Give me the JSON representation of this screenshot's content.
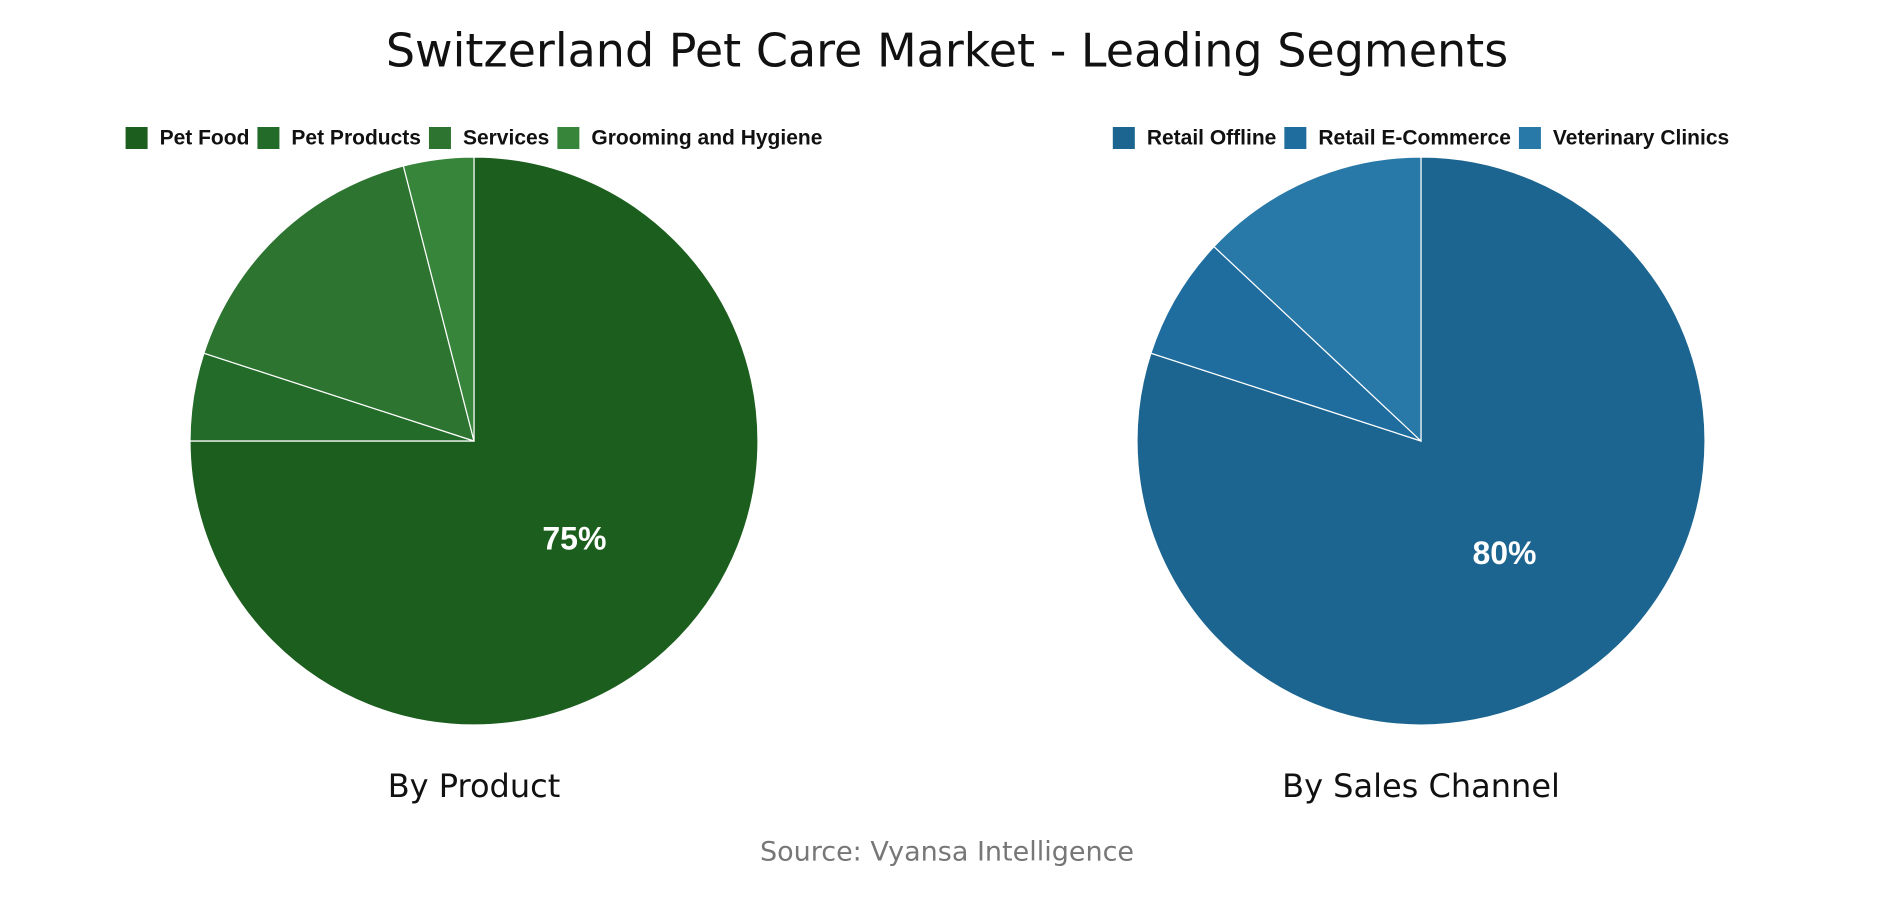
{
  "title": "Switzerland Pet Care Market - Leading Segments",
  "source": "Source: Vyansa Intelligence",
  "chart_data": [
    {
      "type": "pie",
      "title": "By Product",
      "categories": [
        "Pet Food",
        "Pet Products",
        "Services",
        "Grooming and Hygiene"
      ],
      "values": [
        75,
        5,
        16,
        4
      ],
      "colors": [
        "#1c5e1e",
        "#236b28",
        "#2d7430",
        "#37853a"
      ]
    },
    {
      "type": "pie",
      "title": "By Sales Channel",
      "categories": [
        "Retail Offline",
        "Retail E-Commerce",
        "Veterinary Clinics"
      ],
      "values": [
        80,
        7,
        13
      ],
      "colors": [
        "#1c6590",
        "#1f6d9f",
        "#2878a8"
      ]
    }
  ]
}
